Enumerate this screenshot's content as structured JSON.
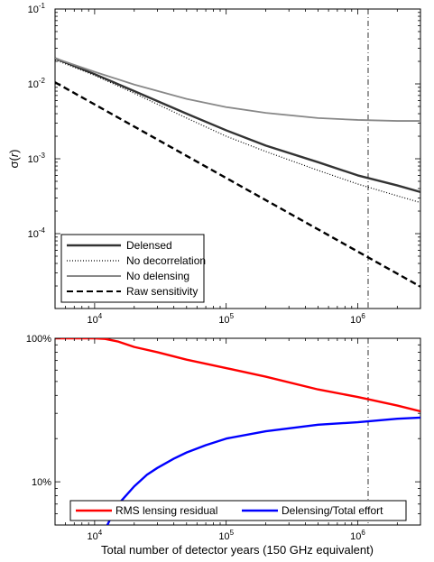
{
  "chart_data": [
    {
      "type": "line",
      "ylabel_symbol": "σ",
      "ylabel_arg": "r",
      "xscale": "log",
      "yscale": "log",
      "xlim": [
        5000,
        3000000
      ],
      "ylim": [
        1e-05,
        0.1
      ],
      "x_ticks": [
        {
          "value": 10000,
          "base": "10",
          "exp": "4"
        },
        {
          "value": 100000,
          "base": "10",
          "exp": "5"
        },
        {
          "value": 1000000,
          "base": "10",
          "exp": "6"
        }
      ],
      "y_ticks": [
        {
          "value": 0.0001,
          "base": "10",
          "exp": "-4"
        },
        {
          "value": 0.001,
          "base": "10",
          "exp": "-3"
        },
        {
          "value": 0.01,
          "base": "10",
          "exp": "-2"
        },
        {
          "value": 0.1,
          "base": "10",
          "exp": "-1"
        }
      ],
      "vline_x": 1200000,
      "legend_position": "bottom-left",
      "series": [
        {
          "name": "Delensed",
          "color": "#333333",
          "dash": "solid",
          "x": [
            5000,
            10000,
            20000,
            50000,
            100000,
            200000,
            500000,
            1000000,
            2000000,
            3000000
          ],
          "y": [
            0.022,
            0.0135,
            0.008,
            0.004,
            0.0024,
            0.0015,
            0.0009,
            0.0006,
            0.00044,
            0.00036
          ]
        },
        {
          "name": "No decorrelation",
          "color": "#000000",
          "dash": "dotted",
          "x": [
            5000,
            10000,
            20000,
            50000,
            100000,
            200000,
            500000,
            1000000,
            2000000,
            3000000
          ],
          "y": [
            0.021,
            0.013,
            0.0075,
            0.0035,
            0.002,
            0.00125,
            0.0007,
            0.00046,
            0.00032,
            0.00026
          ]
        },
        {
          "name": "No delensing",
          "color": "#888888",
          "dash": "solid",
          "x": [
            5000,
            10000,
            20000,
            50000,
            100000,
            200000,
            500000,
            1000000,
            2000000,
            3000000
          ],
          "y": [
            0.022,
            0.0145,
            0.0098,
            0.0063,
            0.0049,
            0.0041,
            0.0035,
            0.0033,
            0.0032,
            0.0032
          ]
        },
        {
          "name": "Raw sensitivity",
          "color": "#000000",
          "dash": "dashed",
          "x": [
            5000,
            3000000
          ],
          "y": [
            0.0105,
            1.96e-05
          ]
        }
      ]
    },
    {
      "type": "line",
      "xlabel": "Total number of detector years (150 GHz equivalent)",
      "xscale": "log",
      "yscale": "log",
      "xlim": [
        5000,
        3000000
      ],
      "ylim": [
        5,
        100
      ],
      "x_ticks": [
        {
          "value": 10000,
          "base": "10",
          "exp": "4"
        },
        {
          "value": 100000,
          "base": "10",
          "exp": "5"
        },
        {
          "value": 1000000,
          "base": "10",
          "exp": "6"
        }
      ],
      "y_ticks": [
        {
          "value": 10,
          "label": "10%"
        },
        {
          "value": 100,
          "label": "100%"
        }
      ],
      "vline_x": 1200000,
      "legend_position": "bottom",
      "series": [
        {
          "name": "RMS lensing residual",
          "color": "#ff0000",
          "x": [
            5000,
            8000,
            10000,
            12000,
            15000,
            20000,
            30000,
            50000,
            100000,
            200000,
            500000,
            1000000,
            2000000,
            3000000
          ],
          "y": [
            100,
            100,
            100,
            99,
            95,
            87,
            80,
            71,
            62,
            54,
            44,
            39,
            34,
            31
          ]
        },
        {
          "name": "Delensing/Total effort",
          "color": "#0000ff",
          "x": [
            12500,
            14000,
            16000,
            20000,
            25000,
            30000,
            40000,
            50000,
            70000,
            100000,
            200000,
            500000,
            1000000,
            2000000,
            3000000
          ],
          "y": [
            5,
            6.2,
            7.4,
            9.3,
            11.2,
            12.5,
            14.5,
            16,
            18,
            20,
            22.5,
            25,
            26,
            27.5,
            28
          ]
        }
      ]
    }
  ]
}
